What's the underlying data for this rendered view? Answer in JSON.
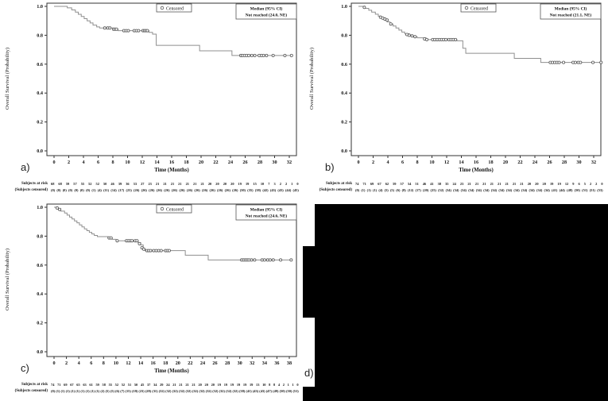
{
  "figure": {
    "panel_d": {
      "label": "d)",
      "blacked_out": true
    }
  },
  "chart_data": [
    {
      "type": "line",
      "panel": "a",
      "panel_label": "a)",
      "title": "",
      "xlabel": "Time (Months)",
      "ylabel": "Overall Survival (Probability)",
      "xlim": [
        0,
        33
      ],
      "ylim": [
        0.0,
        1.0
      ],
      "x_ticks": [
        0,
        2,
        4,
        6,
        8,
        10,
        12,
        14,
        16,
        18,
        20,
        22,
        24,
        26,
        28,
        30,
        32
      ],
      "y_ticks": [
        "0.0",
        "0.2",
        "0.4",
        "0.6",
        "0.8",
        "1.0"
      ],
      "grid": false,
      "legend_position": "top-center",
      "legend_label": "Censored",
      "median_title": "Median (95% CI)",
      "median_value": "Not reached (24.0, NE)",
      "steps": [
        [
          0,
          1.0
        ],
        [
          1.8,
          0.99
        ],
        [
          2.4,
          0.975
        ],
        [
          2.9,
          0.96
        ],
        [
          3.3,
          0.945
        ],
        [
          3.7,
          0.93
        ],
        [
          4.1,
          0.915
        ],
        [
          4.5,
          0.9
        ],
        [
          4.9,
          0.885
        ],
        [
          5.3,
          0.87
        ],
        [
          5.8,
          0.858
        ],
        [
          6.2,
          0.85
        ],
        [
          8.0,
          0.842
        ],
        [
          8.7,
          0.832
        ],
        [
          12.9,
          0.82
        ],
        [
          13.4,
          0.808
        ],
        [
          13.9,
          0.73
        ],
        [
          19.8,
          0.692
        ],
        [
          24.2,
          0.66
        ],
        [
          32.4,
          0.66
        ]
      ],
      "censor_marks": [
        [
          6.9,
          0.85
        ],
        [
          7.3,
          0.85
        ],
        [
          7.6,
          0.85
        ],
        [
          8.1,
          0.842
        ],
        [
          8.3,
          0.842
        ],
        [
          8.5,
          0.842
        ],
        [
          9.5,
          0.832
        ],
        [
          9.8,
          0.832
        ],
        [
          10.1,
          0.832
        ],
        [
          10.9,
          0.832
        ],
        [
          11.2,
          0.832
        ],
        [
          11.5,
          0.832
        ],
        [
          12.1,
          0.832
        ],
        [
          12.3,
          0.832
        ],
        [
          12.5,
          0.832
        ],
        [
          12.7,
          0.832
        ],
        [
          25.4,
          0.66
        ],
        [
          25.6,
          0.66
        ],
        [
          25.9,
          0.66
        ],
        [
          26.2,
          0.66
        ],
        [
          26.5,
          0.66
        ],
        [
          26.9,
          0.66
        ],
        [
          27.3,
          0.66
        ],
        [
          27.9,
          0.66
        ],
        [
          28.2,
          0.66
        ],
        [
          28.5,
          0.66
        ],
        [
          28.9,
          0.66
        ],
        [
          29.8,
          0.66
        ],
        [
          31.4,
          0.66
        ],
        [
          32.3,
          0.66
        ]
      ],
      "at_risk_label": "Subjects at risk",
      "censored_label": "(Subjects censored)",
      "at_risk_counts": [
        "68",
        "68",
        "59",
        "57",
        "55",
        "52",
        "52",
        "50",
        "46",
        "39",
        "36",
        "33",
        "27",
        "23",
        "21",
        "21",
        "21",
        "21",
        "21",
        "21",
        "21",
        "20",
        "20",
        "20",
        "20",
        "19",
        "19",
        "15",
        "10",
        "7",
        "3",
        "2",
        "2",
        "1",
        "0"
      ],
      "censored_counts": [
        "(0)",
        "(0)",
        "(0)",
        "(0)",
        "(0)",
        "(0)",
        "(0)",
        "(1)",
        "(4)",
        "(11)",
        "(14)",
        "(17)",
        "(23)",
        "(26)",
        "(26)",
        "(26)",
        "(26)",
        "(26)",
        "(26)",
        "(26)",
        "(26)",
        "(26)",
        "(26)",
        "(26)",
        "(26)",
        "(26)",
        "(26)",
        "(30)",
        "(35)",
        "(38)",
        "(42)",
        "(43)",
        "(43)",
        "(44)",
        "(45)"
      ]
    },
    {
      "type": "line",
      "panel": "b",
      "panel_label": "b)",
      "title": "",
      "xlabel": "Time (Months)",
      "ylabel": "Overall Survival (Probability)",
      "xlim": [
        0,
        33
      ],
      "ylim": [
        0.0,
        1.0
      ],
      "x_ticks": [
        0,
        2,
        4,
        6,
        8,
        10,
        12,
        14,
        16,
        18,
        20,
        22,
        24,
        26,
        28,
        30,
        32
      ],
      "y_ticks": [
        "0.0",
        "0.2",
        "0.4",
        "0.6",
        "0.8",
        "1.0"
      ],
      "grid": false,
      "legend_position": "top-center",
      "legend_label": "Censored",
      "median_title": "Median (95% CI)",
      "median_value": "Not reached (21.1, NE)",
      "steps": [
        [
          0,
          1.0
        ],
        [
          0.9,
          0.986
        ],
        [
          1.4,
          0.973
        ],
        [
          1.8,
          0.96
        ],
        [
          2.3,
          0.946
        ],
        [
          2.7,
          0.932
        ],
        [
          3.1,
          0.919
        ],
        [
          3.5,
          0.905
        ],
        [
          3.9,
          0.892
        ],
        [
          4.3,
          0.878
        ],
        [
          4.7,
          0.864
        ],
        [
          5.1,
          0.85
        ],
        [
          5.5,
          0.836
        ],
        [
          5.9,
          0.822
        ],
        [
          6.3,
          0.81
        ],
        [
          6.9,
          0.8
        ],
        [
          7.4,
          0.79
        ],
        [
          8.0,
          0.782
        ],
        [
          9.2,
          0.77
        ],
        [
          13.4,
          0.762
        ],
        [
          14.2,
          0.71
        ],
        [
          14.6,
          0.675
        ],
        [
          21.2,
          0.64
        ],
        [
          24.8,
          0.612
        ],
        [
          33.1,
          0.612
        ]
      ],
      "censor_marks": [
        [
          0.8,
          0.993
        ],
        [
          3.0,
          0.925
        ],
        [
          3.3,
          0.919
        ],
        [
          3.6,
          0.912
        ],
        [
          3.9,
          0.905
        ],
        [
          4.4,
          0.878
        ],
        [
          6.6,
          0.805
        ],
        [
          6.9,
          0.8
        ],
        [
          7.3,
          0.795
        ],
        [
          7.7,
          0.79
        ],
        [
          9.0,
          0.775
        ],
        [
          9.3,
          0.77
        ],
        [
          10.1,
          0.77
        ],
        [
          10.4,
          0.77
        ],
        [
          10.7,
          0.77
        ],
        [
          11.0,
          0.77
        ],
        [
          11.3,
          0.77
        ],
        [
          11.6,
          0.77
        ],
        [
          11.9,
          0.77
        ],
        [
          12.3,
          0.77
        ],
        [
          12.6,
          0.77
        ],
        [
          12.9,
          0.77
        ],
        [
          13.2,
          0.77
        ],
        [
          26.1,
          0.612
        ],
        [
          26.4,
          0.612
        ],
        [
          26.7,
          0.612
        ],
        [
          27.0,
          0.612
        ],
        [
          27.3,
          0.612
        ],
        [
          27.9,
          0.612
        ],
        [
          29.2,
          0.612
        ],
        [
          29.5,
          0.612
        ],
        [
          29.9,
          0.612
        ],
        [
          30.2,
          0.612
        ],
        [
          31.9,
          0.612
        ],
        [
          33.0,
          0.612
        ]
      ],
      "at_risk_label": "Subjects at risk",
      "censored_label": "(Subjects censored)",
      "at_risk_counts": [
        "74",
        "71",
        "69",
        "67",
        "62",
        "59",
        "57",
        "54",
        "51",
        "46",
        "41",
        "38",
        "35",
        "24",
        "23",
        "21",
        "21",
        "21",
        "21",
        "21",
        "21",
        "21",
        "21",
        "20",
        "20",
        "20",
        "19",
        "19",
        "12",
        "9",
        "6",
        "5",
        "2",
        "2",
        "0"
      ],
      "censored_counts": [
        "(0)",
        "(1)",
        "(1)",
        "(1)",
        "(4)",
        "(5)",
        "(5)",
        "(6)",
        "(8)",
        "(12)",
        "(17)",
        "(20)",
        "(25)",
        "(32)",
        "(34)",
        "(34)",
        "(34)",
        "(34)",
        "(34)",
        "(34)",
        "(34)",
        "(34)",
        "(34)",
        "(34)",
        "(34)",
        "(34)",
        "(34)",
        "(34)",
        "(41)",
        "(44)",
        "(48)",
        "(50)",
        "(51)",
        "(51)",
        "(53)"
      ]
    },
    {
      "type": "line",
      "panel": "c",
      "panel_label": "c)",
      "title": "",
      "xlabel": "Time (Months)",
      "ylabel": "Overall Survival (Probability)",
      "xlim": [
        0,
        39
      ],
      "ylim": [
        0.0,
        1.0
      ],
      "x_ticks": [
        0,
        2,
        4,
        6,
        8,
        10,
        12,
        14,
        16,
        18,
        20,
        22,
        24,
        26,
        28,
        30,
        32,
        34,
        36,
        38
      ],
      "y_ticks": [
        "0.0",
        "0.2",
        "0.4",
        "0.6",
        "0.8",
        "1.0"
      ],
      "grid": false,
      "legend_position": "top-center",
      "legend_label": "Censored",
      "median_title": "Median (95% CI)",
      "median_value": "Not reached (24.6, NE)",
      "steps": [
        [
          0,
          1.0
        ],
        [
          0.4,
          0.99
        ],
        [
          1.1,
          0.973
        ],
        [
          1.7,
          0.96
        ],
        [
          2.1,
          0.946
        ],
        [
          2.5,
          0.932
        ],
        [
          2.9,
          0.919
        ],
        [
          3.3,
          0.905
        ],
        [
          3.7,
          0.892
        ],
        [
          4.1,
          0.878
        ],
        [
          4.5,
          0.864
        ],
        [
          4.9,
          0.85
        ],
        [
          5.3,
          0.838
        ],
        [
          5.7,
          0.826
        ],
        [
          6.1,
          0.815
        ],
        [
          6.5,
          0.805
        ],
        [
          7.0,
          0.797
        ],
        [
          8.7,
          0.788
        ],
        [
          9.4,
          0.778
        ],
        [
          10.0,
          0.768
        ],
        [
          13.6,
          0.755
        ],
        [
          14.0,
          0.74
        ],
        [
          14.4,
          0.713
        ],
        [
          14.7,
          0.7
        ],
        [
          21.2,
          0.668
        ],
        [
          24.9,
          0.635
        ],
        [
          38.4,
          0.635
        ]
      ],
      "censor_marks": [
        [
          0.5,
          0.995
        ],
        [
          0.9,
          0.985
        ],
        [
          8.9,
          0.788
        ],
        [
          9.2,
          0.788
        ],
        [
          10.2,
          0.768
        ],
        [
          11.7,
          0.768
        ],
        [
          12.0,
          0.768
        ],
        [
          12.3,
          0.768
        ],
        [
          12.6,
          0.768
        ],
        [
          13.1,
          0.768
        ],
        [
          13.4,
          0.768
        ],
        [
          13.8,
          0.748
        ],
        [
          14.2,
          0.72
        ],
        [
          14.5,
          0.71
        ],
        [
          15.0,
          0.7
        ],
        [
          15.3,
          0.7
        ],
        [
          15.6,
          0.7
        ],
        [
          16.1,
          0.7
        ],
        [
          16.5,
          0.7
        ],
        [
          16.9,
          0.7
        ],
        [
          17.3,
          0.7
        ],
        [
          18.0,
          0.7
        ],
        [
          18.3,
          0.7
        ],
        [
          18.6,
          0.7
        ],
        [
          30.3,
          0.635
        ],
        [
          30.6,
          0.635
        ],
        [
          30.9,
          0.635
        ],
        [
          31.2,
          0.635
        ],
        [
          31.5,
          0.635
        ],
        [
          31.9,
          0.635
        ],
        [
          32.4,
          0.635
        ],
        [
          33.6,
          0.635
        ],
        [
          34.0,
          0.635
        ],
        [
          34.5,
          0.635
        ],
        [
          34.9,
          0.635
        ],
        [
          35.4,
          0.635
        ],
        [
          36.6,
          0.635
        ],
        [
          38.3,
          0.635
        ]
      ],
      "at_risk_label": "Subjects at risk",
      "censored_label": "(Subjects censored)",
      "at_risk_counts": [
        "74",
        "71",
        "69",
        "67",
        "65",
        "63",
        "61",
        "59",
        "58",
        "55",
        "52",
        "52",
        "51",
        "50",
        "45",
        "37",
        "34",
        "29",
        "24",
        "21",
        "21",
        "21",
        "21",
        "20",
        "20",
        "20",
        "19",
        "19",
        "19",
        "19",
        "19",
        "19",
        "13",
        "10",
        "8",
        "8",
        "4",
        "2",
        "1",
        "1",
        "0"
      ],
      "censored_counts": [
        "(0)",
        "(1)",
        "(1)",
        "(1)",
        "(1)",
        "(1)",
        "(1)",
        "(1)",
        "(1)",
        "(1)",
        "(2)",
        "(5)",
        "(5)",
        "(6)",
        "(7)",
        "(15)",
        "(18)",
        "(23)",
        "(28)",
        "(31)",
        "(32)",
        "(32)",
        "(32)",
        "(32)",
        "(32)",
        "(32)",
        "(32)",
        "(32)",
        "(32)",
        "(32)",
        "(32)",
        "(32)",
        "(38)",
        "(41)",
        "(43)",
        "(43)",
        "(47)",
        "(49)",
        "(50)",
        "(50)",
        "(51)"
      ]
    }
  ]
}
